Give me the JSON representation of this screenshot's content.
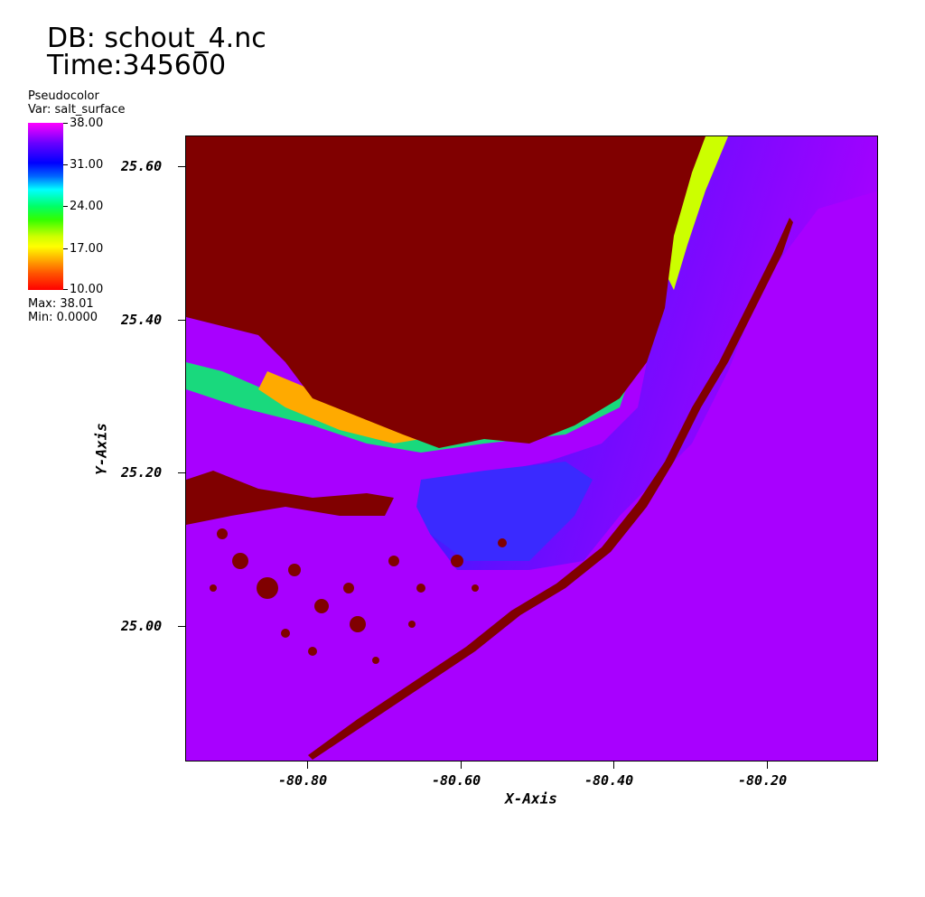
{
  "header": {
    "db": "DB: schout_4.nc",
    "time": "Time:345600"
  },
  "legend": {
    "plot_type": "Pseudocolor",
    "var": "Var: salt_surface",
    "ticks": [
      "38.00",
      "31.00",
      "24.00",
      "17.00",
      "10.00"
    ],
    "max": "Max:  38.01",
    "min": "Min:  0.0000",
    "colormap": [
      "#ff00ff",
      "#0000ff",
      "#00ffff",
      "#00ff00",
      "#ffff00",
      "#ff0000"
    ]
  },
  "axes": {
    "x_title": "X-Axis",
    "y_title": "Y-Axis",
    "x_ticks": [
      "-80.80",
      "-80.60",
      "-80.40",
      "-80.20"
    ],
    "y_ticks": [
      "25.60",
      "25.40",
      "25.20",
      "25.00"
    ]
  },
  "colors": {
    "land": "#800000",
    "open_water": "#a800ff",
    "bay_blue": "#3a3aff",
    "shelf_blue": "#1a1aff"
  }
}
